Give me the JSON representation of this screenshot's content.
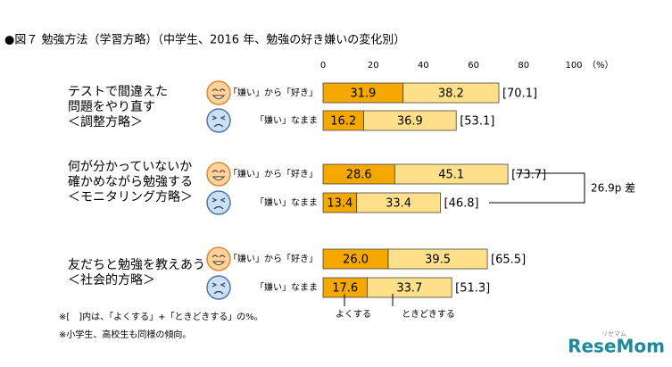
{
  "chart_data": {
    "type": "stacked-bar-horizontal",
    "title": "●図７ 勉強方法（学習方略）（中学生、2016 年、勉強の好き嫌いの変化別）",
    "x_unit_label": "（%）",
    "xlim": [
      0,
      100
    ],
    "xticks": [
      0,
      20,
      40,
      60,
      80,
      100
    ],
    "groups": [
      {
        "lines": [
          "テストで間違えた",
          "問題をやり直す",
          "＜調整方略＞"
        ]
      },
      {
        "lines": [
          "何が分かっていないか",
          "確かめながら勉強する",
          "＜モニタリング方略＞"
        ]
      },
      {
        "lines": [
          "友だちと勉強を教えあう",
          "＜社会的方略＞"
        ]
      }
    ],
    "categories": [
      "「嫌い」から「好き」",
      "「嫌い」なまま",
      "「嫌い」から「好き」",
      "「嫌い」なまま",
      "「嫌い」から「好き」",
      "「嫌い」なまま"
    ],
    "series": [
      {
        "name": "よくする",
        "color": "#f5a800",
        "values": [
          31.9,
          16.2,
          28.6,
          13.4,
          26.0,
          17.6
        ],
        "value_labels": [
          "31.9",
          "16.2",
          "28.6",
          "13.4",
          "26.0",
          "17.6"
        ]
      },
      {
        "name": "ときどきする",
        "color": "#ffe08a",
        "values": [
          38.2,
          36.9,
          45.1,
          33.4,
          39.5,
          33.7
        ]
      }
    ],
    "totals": {
      "values": [
        70.1,
        53.1,
        73.7,
        46.8,
        65.5,
        51.3
      ],
      "value_labels": [
        "[70.1]",
        "[53.1]",
        "[73.7]",
        "[46.8]",
        "[65.5]",
        "[51.3]"
      ]
    },
    "annotation": "26.9p 差",
    "footnotes": [
      "※[　]内は、「よくする」+「ときどきする」の%。",
      "※小学生、高校生も同様の傾向。"
    ],
    "logo": {
      "text": "ReseMom",
      "sub": "リセマム"
    }
  }
}
